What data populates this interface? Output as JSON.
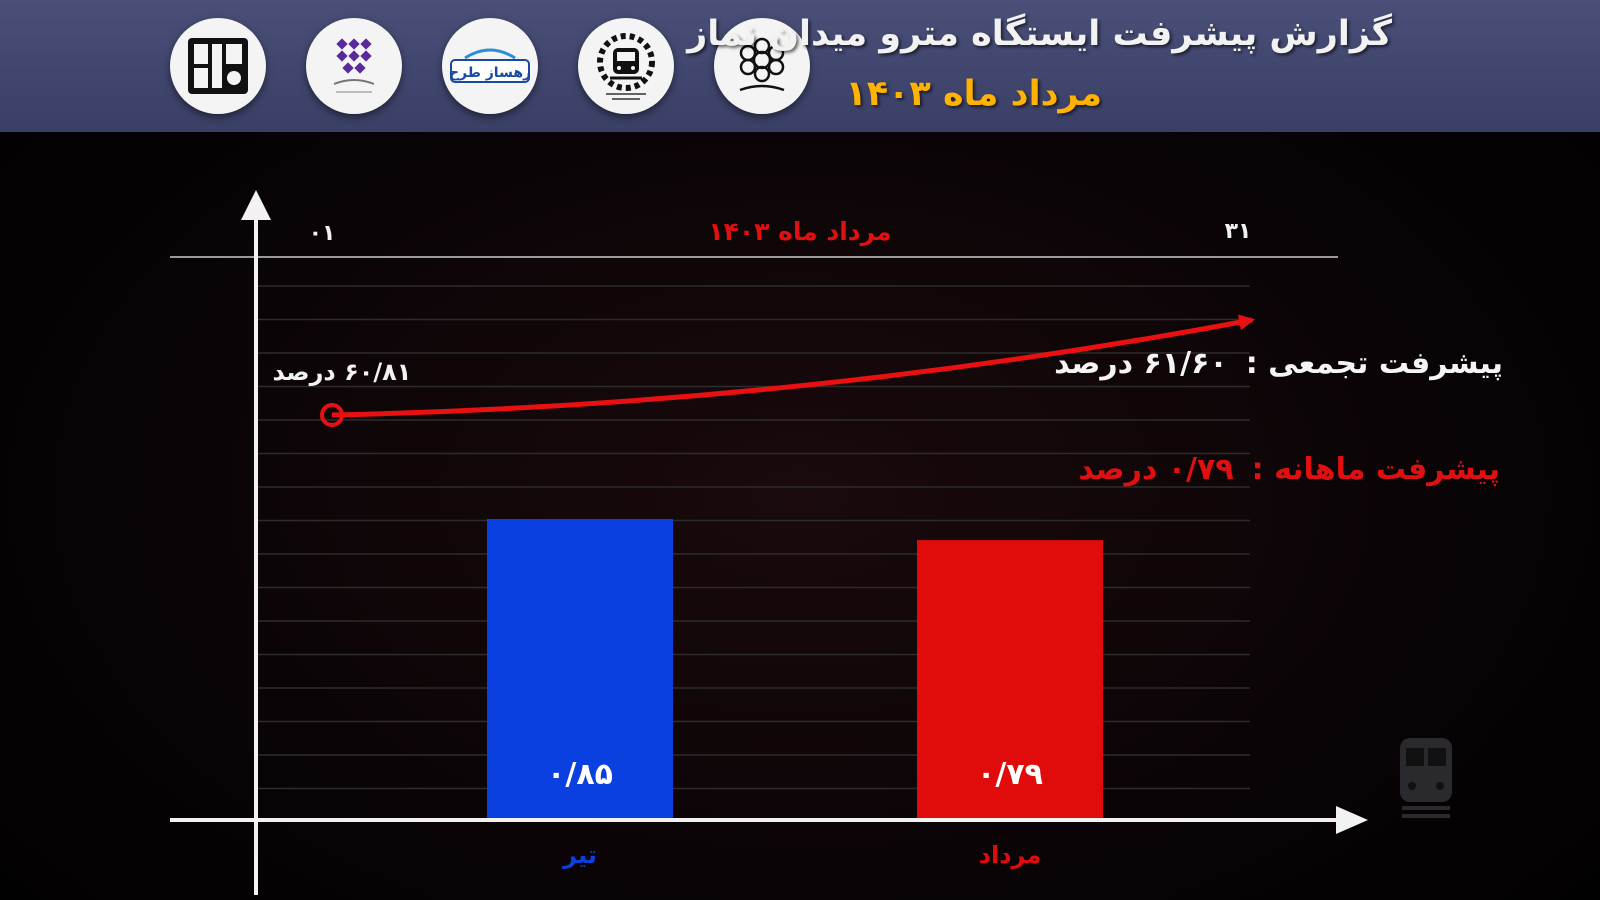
{
  "header": {
    "title": "گزارش پیشرفت ایستگاه مترو میدان نماز",
    "subtitle": "مرداد ماه ۱۴۰۳",
    "logos": [
      {
        "icon": "metro-logo-icon"
      },
      {
        "icon": "purple-dots-logo-icon"
      },
      {
        "icon": "rahsaz-tarh-logo-icon",
        "text": "رهساز طرح"
      },
      {
        "icon": "train-organization-logo-icon"
      },
      {
        "icon": "islamshahr-municipality-logo-icon"
      }
    ]
  },
  "chart_data": {
    "type": "bar",
    "categories": [
      "تیر",
      "مرداد"
    ],
    "values": [
      0.85,
      0.79
    ],
    "value_labels": [
      "۰/۸۵",
      "۰/۷۹"
    ],
    "colors": [
      "#0a3fe0",
      "#e00b0b"
    ],
    "ylim": [
      0,
      1.7
    ],
    "grid": true,
    "timeline": {
      "label": "مرداد ماه ۱۴۰۳",
      "start_label": "۰۱",
      "end_label": "۳۱",
      "start_value": 60.81,
      "start_value_label": "۶۰/۸۱ درصد",
      "end_value": 61.6
    }
  },
  "summary": {
    "cumulative_label": "پیشرفت تجمعی :",
    "cumulative_value": "۶۱/۶۰ درصد",
    "monthly_label": "پیشرفت ماهانه :",
    "monthly_value": "۰/۷۹ درصد"
  },
  "decor": {
    "train_icon": "train-icon"
  }
}
